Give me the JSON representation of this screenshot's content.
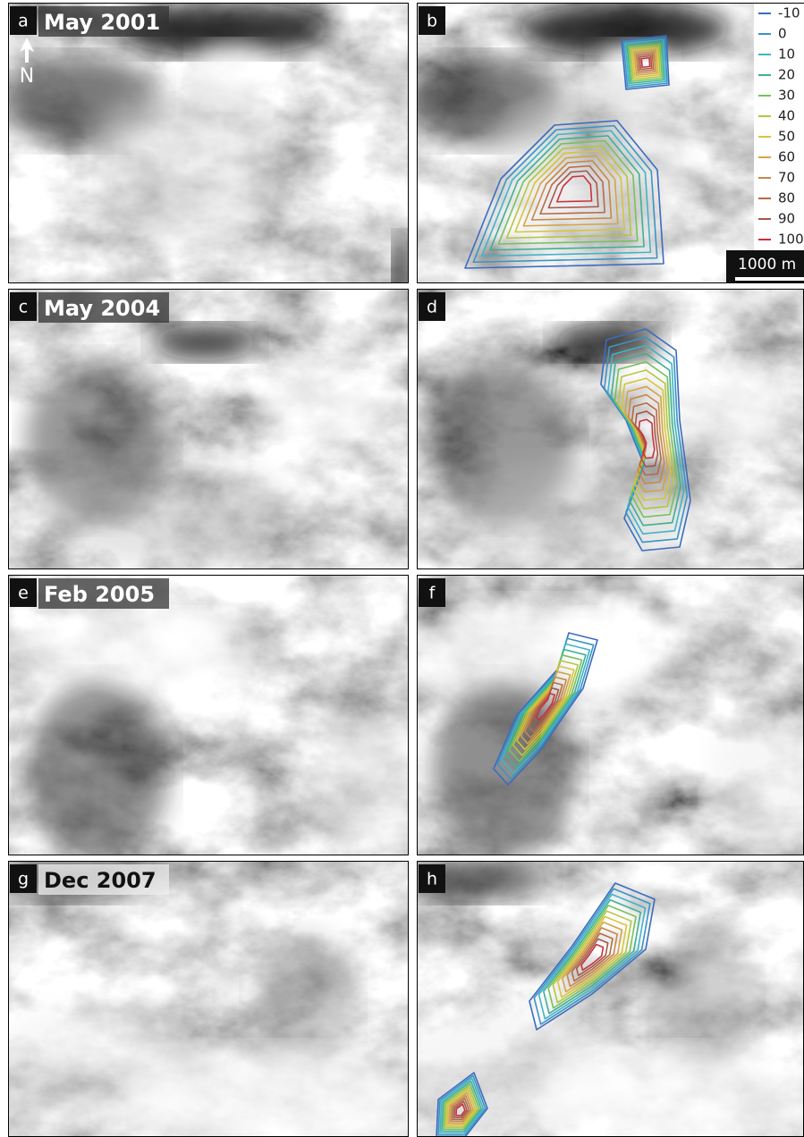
{
  "panels": [
    {
      "letter": "a",
      "title": "May 2001"
    },
    {
      "letter": "b"
    },
    {
      "letter": "c",
      "title": "May 2004"
    },
    {
      "letter": "d"
    },
    {
      "letter": "e",
      "title": "Feb 2005"
    },
    {
      "letter": "f"
    },
    {
      "letter": "g",
      "title": "Dec 2007"
    },
    {
      "letter": "h"
    }
  ],
  "north": "N",
  "scale_bar": "1000 m",
  "legend": {
    "levels": [
      -10,
      0,
      10,
      20,
      30,
      40,
      50,
      60,
      70,
      80,
      90,
      100
    ],
    "colors": [
      "#3a6cc0",
      "#3a94c4",
      "#3fb4c8",
      "#3eb092",
      "#74c25a",
      "#b4c63e",
      "#d8c43a",
      "#d4a446",
      "#c88846",
      "#b66a44",
      "#a4584a",
      "#c8323c"
    ]
  }
}
